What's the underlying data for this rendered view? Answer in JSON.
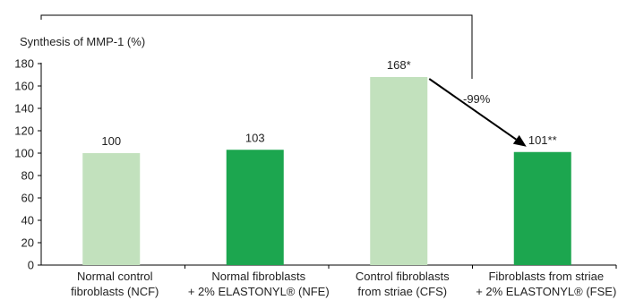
{
  "chart_data": {
    "type": "bar",
    "ylabel": "Synthesis of MMP-1 (%)",
    "ylim": [
      0,
      180
    ],
    "yticks": [
      0,
      20,
      40,
      60,
      80,
      100,
      120,
      140,
      160,
      180
    ],
    "categories": [
      [
        "Normal control",
        "fibroblasts (NCF)"
      ],
      [
        "Normal fibroblasts",
        "+ 2% ELASTONYL® (NFE)"
      ],
      [
        "Control fibroblasts",
        "from striae (CFS)"
      ],
      [
        "Fibroblasts from striae",
        "+ 2% ELASTONYL® (FSE)"
      ]
    ],
    "values": [
      100,
      103,
      168,
      101
    ],
    "data_labels": [
      "100",
      "103",
      "168*",
      "101**"
    ],
    "bar_colors": [
      "#c2e1bd",
      "#1ca64f",
      "#c2e1bd",
      "#1ca64f"
    ],
    "annotation": {
      "text": "-99%",
      "from_category_index": 2,
      "to_category_index": 3
    },
    "grid": false,
    "legend": "none"
  }
}
